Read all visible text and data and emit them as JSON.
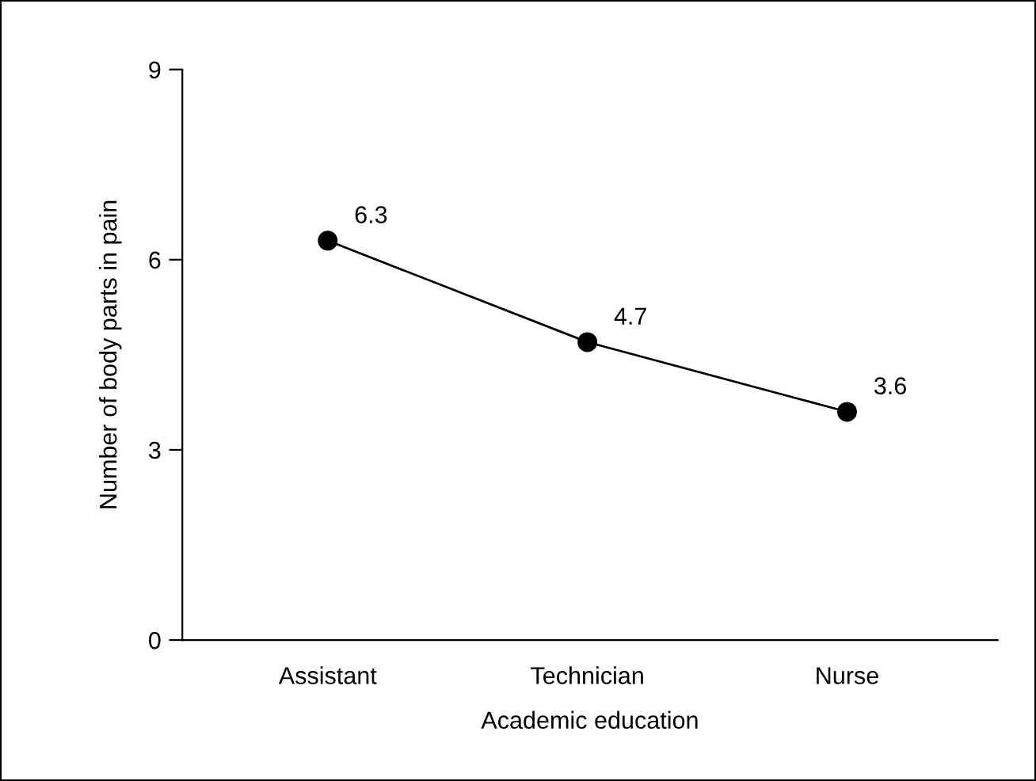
{
  "chart_data": {
    "type": "line",
    "xlabel": "Academic education",
    "ylabel": "Number of body parts in pain",
    "categories": [
      "Assistant",
      "Technician",
      "Nurse"
    ],
    "series": [
      {
        "color": "#000000",
        "values": [
          6.3,
          4.7,
          3.6
        ]
      }
    ],
    "ylim": [
      0,
      9
    ],
    "yticks": [
      0,
      3,
      6,
      9
    ],
    "marker": "circle",
    "line_style": "solid",
    "data_labels": true,
    "grid": false,
    "legend": false
  }
}
